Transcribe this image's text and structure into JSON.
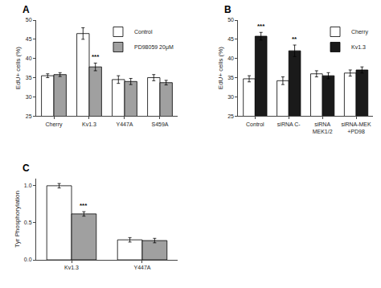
{
  "chart_data": [
    {
      "type": "bar",
      "title": "A",
      "ylabel": "EdU+ cells (%)",
      "categories": [
        "Cherry",
        "Kv1.3",
        "Y447A",
        "S459A"
      ],
      "series": [
        {
          "name": "Control",
          "color": "#ffffff",
          "values": [
            35.5,
            46.5,
            34.5,
            35.0
          ],
          "errors": [
            0.5,
            1.5,
            1.0,
            0.8
          ]
        },
        {
          "name": "PD98059 20μM",
          "color": "#a0a0a0",
          "values": [
            35.8,
            37.8,
            34.0,
            33.7
          ],
          "errors": [
            0.5,
            1.0,
            0.8,
            0.6
          ]
        }
      ],
      "ylim": [
        25,
        50
      ],
      "yticks": [
        25,
        30,
        35,
        40,
        45,
        50
      ],
      "grid": false,
      "legend": "upper right",
      "annotations": [
        {
          "text": "***",
          "category": "Kv1.3",
          "series": 1
        }
      ]
    },
    {
      "type": "bar",
      "title": "B",
      "ylabel": "EdU+ cells (%)",
      "categories": [
        "Control",
        "siRNA C-",
        "siRNA\nMEK1/2",
        "siRNA-MEK\n+PD98"
      ],
      "series": [
        {
          "name": "Cherry",
          "color": "#ffffff",
          "values": [
            34.7,
            34.2,
            36.0,
            36.2
          ],
          "errors": [
            0.8,
            1.0,
            0.8,
            0.8
          ]
        },
        {
          "name": "Kv1.3",
          "color": "#1a1a1a",
          "values": [
            45.8,
            42.0,
            35.5,
            37.0
          ],
          "errors": [
            1.0,
            1.5,
            0.8,
            0.8
          ]
        }
      ],
      "ylim": [
        25,
        50
      ],
      "yticks": [
        25,
        30,
        35,
        40,
        45,
        50
      ],
      "grid": false,
      "legend": "upper right",
      "annotations": [
        {
          "text": "***",
          "category": "Control",
          "series": 1
        },
        {
          "text": "**",
          "category": "siRNA C-",
          "series": 1
        }
      ]
    },
    {
      "type": "bar",
      "title": "C",
      "ylabel": "Tyr Phosphorylation",
      "categories": [
        "Kv1.3",
        "Y447A"
      ],
      "series": [
        {
          "color": "#ffffff",
          "values": [
            1.0,
            0.27
          ],
          "errors": [
            0.03,
            0.03
          ]
        },
        {
          "color": "#a0a0a0",
          "values": [
            0.62,
            0.26
          ],
          "errors": [
            0.03,
            0.03
          ]
        }
      ],
      "ylim": [
        0,
        1.1
      ],
      "yticks": [
        {
          "value": 0.0,
          "label": "0.0"
        },
        0.5,
        {
          "value": 1.0,
          "label": "1.0"
        }
      ],
      "grid": false,
      "annotations": [
        {
          "text": "***",
          "category": "Kv1.3",
          "series": 1
        }
      ]
    }
  ]
}
